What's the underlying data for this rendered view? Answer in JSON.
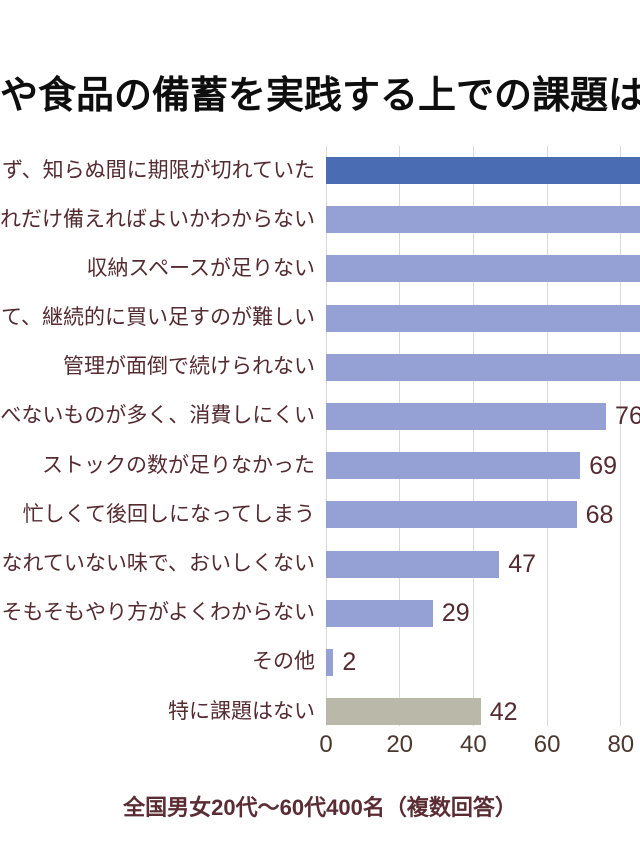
{
  "page": {
    "title": "や食品の備蓄を実践する上での課題は何",
    "caption": "全国男女20代～60代400名（複数回答）"
  },
  "chart_data": {
    "type": "bar",
    "orientation": "horizontal",
    "title": "や食品の備蓄を実践する上での課題は何 (title clipped at both image edges)",
    "caption": "全国男女20代～60代400名（複数回答）",
    "xlabel": "",
    "ylabel": "",
    "xticks": [
      0,
      20,
      40,
      60,
      80
    ],
    "xlim": [
      0,
      85
    ],
    "grid": "vertical",
    "categories": [
      "ず、知らぬ間に期限が切れていた",
      "れだけ備えればよいかわからない",
      "収納スペースが足りない",
      "て、継続的に買い足すのが難しい",
      "管理が面倒で続けられない",
      "べないものが多く、消費しにくい",
      "ストックの数が足りなかった",
      "忙しくて後回しになってしまう",
      "なれていない味で、おいしくない",
      "そもそもやり方がよくわからない",
      "その他",
      "特に課題はない"
    ],
    "values": [
      null,
      null,
      null,
      null,
      null,
      76,
      69,
      68,
      47,
      29,
      2,
      42
    ],
    "bars_clipped_at_right_edge": [
      true,
      true,
      true,
      true,
      true,
      false,
      false,
      false,
      false,
      false,
      false,
      false
    ],
    "bar_colors": [
      "highlight",
      "normal",
      "normal",
      "normal",
      "normal",
      "normal",
      "normal",
      "normal",
      "normal",
      "normal",
      "normal",
      "neutral"
    ],
    "colors": {
      "highlight": "#4a6cb3",
      "normal": "#95a1d5",
      "neutral": "#b9b8a9",
      "label_text": "#542b31",
      "tick_text": "#4b372f",
      "gridline": "#d9d9d9"
    }
  }
}
